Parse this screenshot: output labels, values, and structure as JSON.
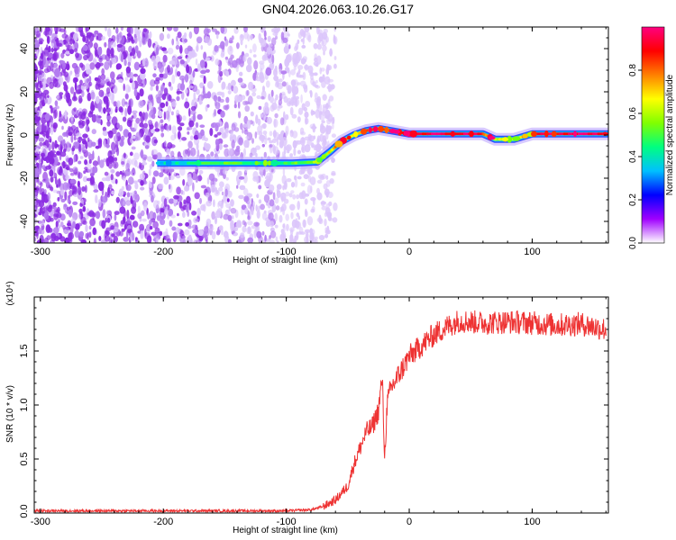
{
  "title": "GN04.2026.063.10.26.G17",
  "chart_data": [
    {
      "type": "heatmap",
      "xlabel": "Height of straight line (km)",
      "ylabel": "Frequency (Hz)",
      "xlim": [
        -305,
        162
      ],
      "ylim": [
        -50,
        50
      ],
      "xticks": [
        -300,
        -200,
        -100,
        0,
        100
      ],
      "yticks": [
        -40,
        -20,
        0,
        20,
        40
      ],
      "colorbar": {
        "label": "Normalized spectral amplitude",
        "range": [
          0,
          1
        ],
        "ticks": [
          "0.0",
          "0.2",
          "0.4",
          "0.6",
          "0.8"
        ],
        "tick_values": [
          0,
          0.2,
          0.4,
          0.6,
          0.8
        ],
        "colors": [
          "#ffffff",
          "#a000ff",
          "#0000ff",
          "#00c0ff",
          "#00ff80",
          "#80ff00",
          "#ffff00",
          "#ff8000",
          "#ff0000",
          "#ff0080"
        ]
      },
      "ridge": {
        "x": [
          -205,
          -180,
          -150,
          -120,
          -95,
          -75,
          -65,
          -55,
          -45,
          -35,
          -25,
          -15,
          -5,
          0,
          30,
          60,
          70,
          85,
          100,
          130,
          162
        ],
        "y": [
          -13,
          -13,
          -13,
          -13,
          -13,
          -12.5,
          -8,
          -3,
          0,
          2,
          3,
          2,
          1,
          0.5,
          0.5,
          0.5,
          -2,
          -2,
          0.5,
          0.5,
          0.5
        ],
        "amplitude": [
          0.35,
          0.4,
          0.5,
          0.45,
          0.5,
          0.55,
          0.65,
          0.8,
          0.7,
          0.85,
          0.75,
          0.9,
          0.95,
          0.95,
          0.95,
          0.9,
          0.6,
          0.6,
          0.9,
          0.95,
          0.95
        ]
      },
      "noise": {
        "x_range": [
          -305,
          -70
        ],
        "y_range": [
          -50,
          50
        ],
        "amplitude_range": [
          0.0,
          0.25
        ]
      },
      "grid": false,
      "legend": "colorbar-right"
    },
    {
      "type": "line",
      "xlabel": "Height of straight line (km)",
      "ylabel": "SNR (10 * v/v)",
      "y_multiplier": "(x10⁴)",
      "xlim": [
        -305,
        162
      ],
      "ylim": [
        0,
        2
      ],
      "xticks": [
        -300,
        -200,
        -100,
        0,
        100
      ],
      "yticks": [
        "0.0",
        "0.5",
        "1.0",
        "1.5"
      ],
      "ytick_values": [
        0,
        0.5,
        1.0,
        1.5
      ],
      "series": [
        {
          "color": "#ee3333",
          "x": [
            -305,
            -280,
            -250,
            -200,
            -150,
            -100,
            -80,
            -70,
            -60,
            -50,
            -45,
            -40,
            -35,
            -30,
            -25,
            -22,
            -20,
            -18,
            -15,
            -10,
            -5,
            0,
            5,
            10,
            20,
            30,
            40,
            60,
            80,
            100,
            120,
            140,
            160
          ],
          "y": [
            0.02,
            0.02,
            0.02,
            0.02,
            0.02,
            0.02,
            0.03,
            0.06,
            0.12,
            0.25,
            0.45,
            0.6,
            0.75,
            0.8,
            0.95,
            1.25,
            0.5,
            1.0,
            1.15,
            1.25,
            1.35,
            1.45,
            1.5,
            1.55,
            1.65,
            1.72,
            1.78,
            1.76,
            1.77,
            1.76,
            1.74,
            1.75,
            1.7
          ],
          "noise_amplitude": 0.08
        }
      ],
      "grid": false
    }
  ]
}
